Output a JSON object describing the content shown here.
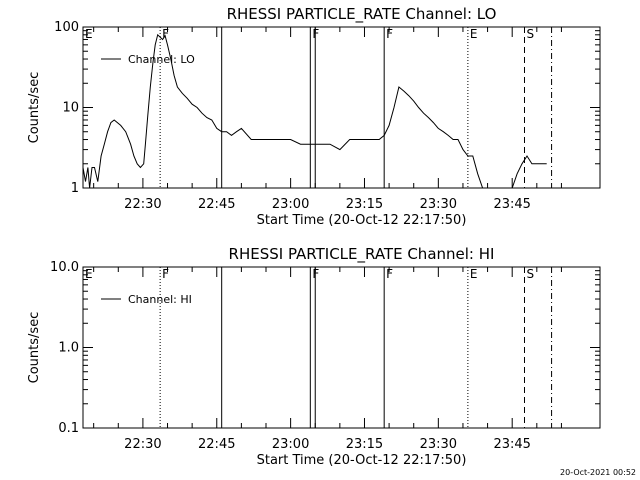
{
  "charts": [
    {
      "key": "lo",
      "chart_data": {
        "type": "line",
        "title": "RHESSI PARTICLE_RATE Channel: LO",
        "xlabel": "Start Time (20-Oct-12 22:17:50)",
        "ylabel": "Counts/sec",
        "yscale": "log",
        "ylim": [
          1,
          100
        ],
        "xlim_minutes_after_start": [
          0,
          105
        ],
        "yticks": [
          {
            "v": 1,
            "label": "1"
          },
          {
            "v": 10,
            "label": "10"
          },
          {
            "v": 100,
            "label": "100"
          }
        ],
        "xticks": [
          {
            "t": "22:30",
            "label": "22:30"
          },
          {
            "t": "22:45",
            "label": "22:45"
          },
          {
            "t": "23:00",
            "label": "23:00"
          },
          {
            "t": "23:15",
            "label": "23:15"
          },
          {
            "t": "23:30",
            "label": "23:30"
          },
          {
            "t": "23:45",
            "label": "23:45"
          }
        ],
        "legend": {
          "entry": "Channel: LO",
          "placement": "top-left"
        },
        "series": [
          {
            "name": "Channel: LO",
            "x": [
              "22:17:50",
              "22:18:20",
              "22:18:50",
              "22:19:10",
              "22:19:40",
              "22:20:10",
              "22:20:50",
              "22:21:30",
              "22:22:10",
              "22:22:50",
              "22:23:30",
              "22:24:10",
              "22:25:30",
              "22:26:30",
              "22:27:30",
              "22:28:10",
              "22:28:50",
              "22:29:30",
              "22:30:10",
              "22:30:30",
              "22:31:00",
              "22:31:30",
              "22:32:00",
              "22:32:30",
              "22:33:00",
              "22:33:30",
              "22:34:00",
              "22:34:30",
              "22:35:00",
              "22:35:40",
              "22:36:20",
              "22:37:00",
              "22:38:00",
              "22:39:00",
              "22:40:00",
              "22:41:00",
              "22:42:00",
              "22:43:00",
              "22:44:00",
              "22:45:00",
              "22:46:00",
              "22:47:00",
              "22:48:00",
              "22:49:00",
              "22:50:00",
              "22:52:00",
              "22:54:00",
              "22:56:00",
              "22:58:00",
              "23:00:00",
              "23:02:00",
              "23:04:00",
              "23:06:00",
              "23:08:00",
              "23:10:00",
              "23:12:00",
              "23:14:00",
              "23:16:00",
              "23:18:00",
              "23:19:00",
              "23:20:00",
              "23:21:00",
              "23:22:00",
              "23:23:00",
              "23:24:00",
              "23:25:00",
              "23:26:00",
              "23:27:00",
              "23:28:00",
              "23:29:00",
              "23:30:00",
              "23:31:00",
              "23:32:00",
              "23:33:00",
              "23:34:00",
              "23:35:00",
              "23:36:00",
              "23:37:00",
              "23:38:00",
              "23:39:00",
              "23:40:00",
              "23:41:00",
              "23:42:00",
              "23:43:00",
              "23:44:00",
              "23:45:00",
              "23:46:00",
              "23:47:00",
              "23:48:00",
              "23:49:00",
              "23:50:00",
              "23:52:00"
            ],
            "y": [
              1.8,
              1.2,
              1.8,
              1.0,
              1.8,
              1.8,
              1.2,
              2.5,
              3.5,
              5.0,
              6.5,
              7.0,
              6.0,
              5.0,
              3.5,
              2.5,
              2.0,
              1.8,
              2.0,
              3.5,
              8.0,
              18,
              35,
              60,
              80,
              75,
              70,
              78,
              60,
              40,
              25,
              18,
              15,
              13,
              11,
              10,
              8.5,
              7.5,
              7.0,
              5.5,
              5.0,
              5.0,
              4.5,
              5.0,
              5.5,
              4.0,
              4.0,
              4.0,
              4.0,
              4.0,
              3.5,
              3.5,
              3.5,
              3.5,
              3.0,
              4.0,
              4.0,
              4.0,
              4.0,
              4.5,
              6.0,
              10,
              18,
              16,
              14,
              12,
              10,
              8.5,
              7.5,
              6.5,
              5.5,
              5.0,
              4.5,
              4.0,
              4.0,
              3.0,
              2.5,
              2.5,
              1.5,
              1.0,
              1.0,
              1.0,
              1.0,
              1.0,
              1.0,
              1.0,
              1.5,
              2.0,
              2.5,
              2.0,
              2.0,
              2.0
            ]
          }
        ],
        "annotations": [
          {
            "label": "E",
            "t": "22:17:50",
            "style": "none"
          },
          {
            "label": "F",
            "t": "22:33:30",
            "style": "dotted"
          },
          {
            "label": "",
            "t": "22:46:00",
            "style": "solid"
          },
          {
            "label": "F",
            "t": "23:04:00",
            "style": "solid"
          },
          {
            "label": "",
            "t": "23:05:00",
            "style": "solid"
          },
          {
            "label": "F",
            "t": "23:19:00",
            "style": "solid"
          },
          {
            "label": "E",
            "t": "23:36:00",
            "style": "dotted"
          },
          {
            "label": "S",
            "t": "23:47:30",
            "style": "dashed"
          },
          {
            "label": "",
            "t": "23:53:00",
            "style": "dashdot"
          }
        ]
      }
    },
    {
      "key": "hi",
      "chart_data": {
        "type": "line",
        "title": "RHESSI PARTICLE_RATE Channel: HI",
        "xlabel": "Start Time (20-Oct-12 22:17:50)",
        "ylabel": "Counts/sec",
        "yscale": "log",
        "ylim": [
          0.1,
          10
        ],
        "xlim_minutes_after_start": [
          0,
          105
        ],
        "yticks": [
          {
            "v": 0.1,
            "label": "0.1"
          },
          {
            "v": 1,
            "label": "1.0"
          },
          {
            "v": 10,
            "label": "10.0"
          }
        ],
        "xticks": [
          {
            "t": "22:30",
            "label": "22:30"
          },
          {
            "t": "22:45",
            "label": "22:45"
          },
          {
            "t": "23:00",
            "label": "23:00"
          },
          {
            "t": "23:15",
            "label": "23:15"
          },
          {
            "t": "23:30",
            "label": "23:30"
          },
          {
            "t": "23:45",
            "label": "23:45"
          }
        ],
        "legend": {
          "entry": "Channel: HI",
          "placement": "top-left"
        },
        "series": [
          {
            "name": "Channel: HI",
            "x": [],
            "y": []
          }
        ],
        "annotations": [
          {
            "label": "E",
            "t": "22:17:50",
            "style": "none"
          },
          {
            "label": "F",
            "t": "22:33:30",
            "style": "dotted"
          },
          {
            "label": "",
            "t": "22:46:00",
            "style": "solid"
          },
          {
            "label": "F",
            "t": "23:04:00",
            "style": "solid"
          },
          {
            "label": "",
            "t": "23:05:00",
            "style": "solid"
          },
          {
            "label": "F",
            "t": "23:19:00",
            "style": "solid"
          },
          {
            "label": "E",
            "t": "23:36:00",
            "style": "dotted"
          },
          {
            "label": "S",
            "t": "23:47:30",
            "style": "dashed"
          },
          {
            "label": "",
            "t": "23:53:00",
            "style": "dashdot"
          }
        ]
      }
    }
  ],
  "footer": {
    "timestamp": "20-Oct-2021 00:52"
  }
}
